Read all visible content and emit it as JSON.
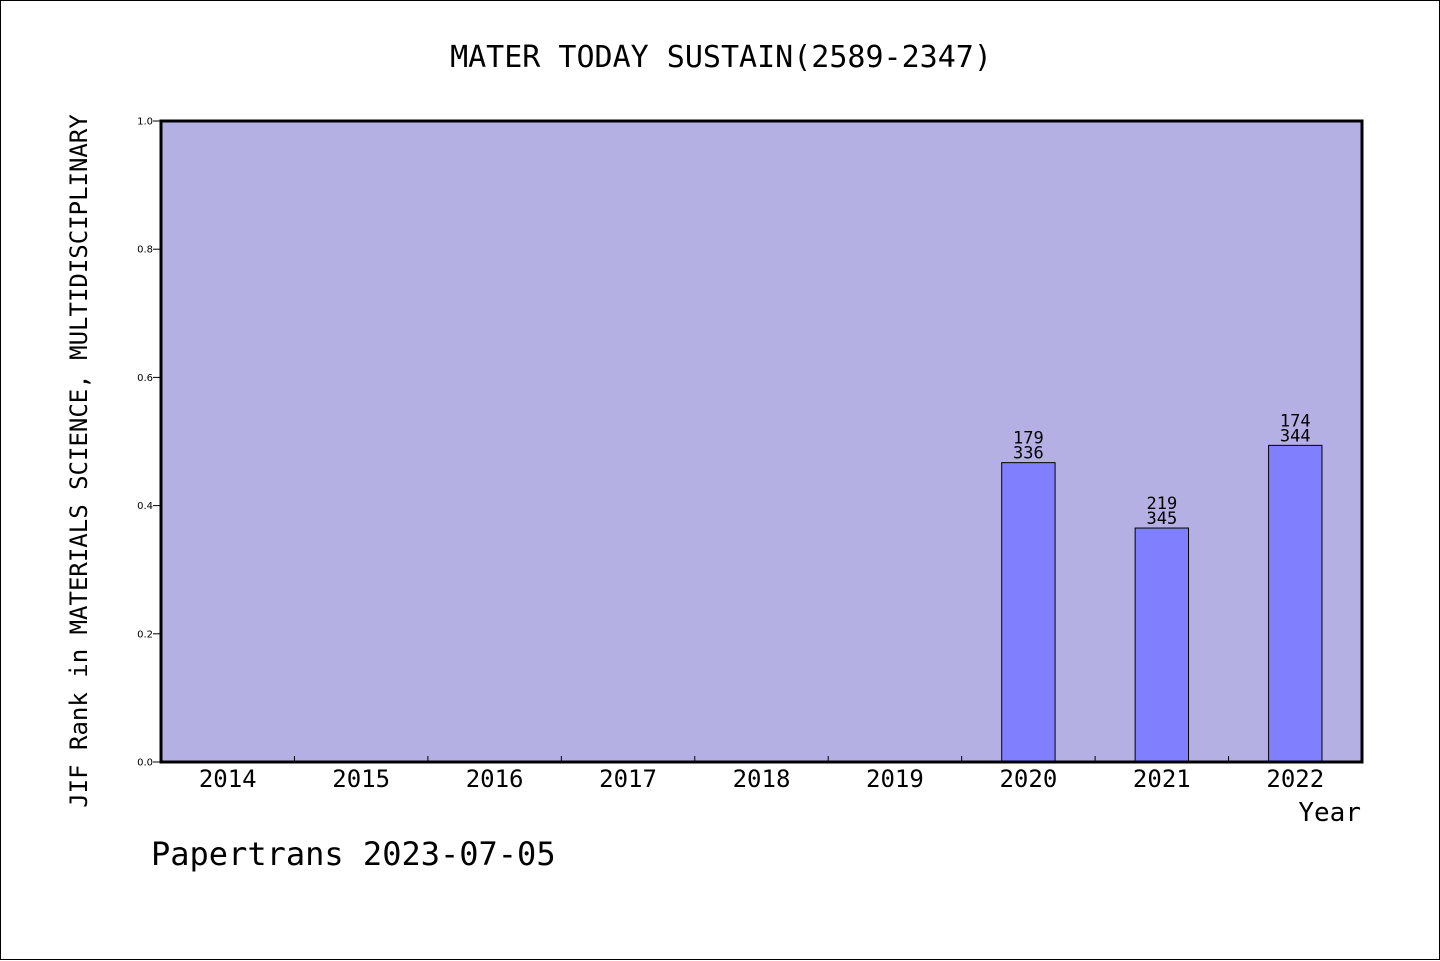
{
  "chart_data": {
    "type": "bar",
    "title": "MATER TODAY SUSTAIN(2589-2347)",
    "xlabel": "Year",
    "ylabel": "JIF Rank in MATERIALS SCIENCE, MULTIDISCIPLINARY",
    "categories": [
      "2014",
      "2015",
      "2016",
      "2017",
      "2018",
      "2019",
      "2020",
      "2021",
      "2022"
    ],
    "values": [
      null,
      null,
      null,
      null,
      null,
      null,
      0.467,
      0.365,
      0.494
    ],
    "bar_labels": [
      null,
      null,
      null,
      null,
      null,
      null,
      {
        "rank": "179",
        "total": "336"
      },
      {
        "rank": "219",
        "total": "345"
      },
      {
        "rank": "174",
        "total": "344"
      }
    ],
    "ylim": [
      0,
      1.0
    ],
    "yticks": [
      "0.0",
      "0.2",
      "0.4",
      "0.6",
      "0.8",
      "1.0"
    ],
    "grid": false,
    "colors": {
      "plot_background": "#b5b0e3",
      "bar_fill": "#8080ff",
      "bar_stroke": "#000000",
      "axis": "#000000"
    }
  },
  "footer": {
    "text": "Papertrans 2023-07-05"
  }
}
